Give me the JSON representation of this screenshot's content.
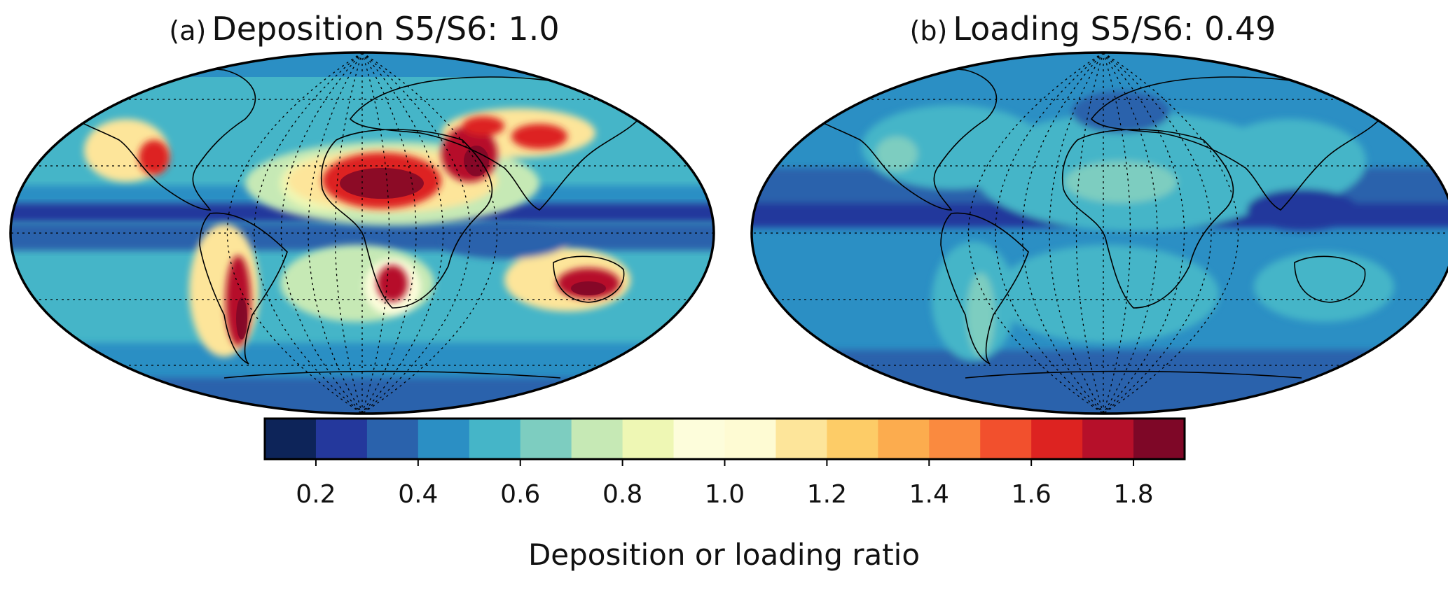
{
  "panels": [
    {
      "id": "a",
      "tag": "(a)",
      "title": "Deposition S5/S6: 1.0",
      "ratio": 1.0
    },
    {
      "id": "b",
      "tag": "(b)",
      "title": "Loading S5/S6: 0.49",
      "ratio": 0.49
    }
  ],
  "colorbar": {
    "label": "Deposition or loading ratio",
    "min": 0.1,
    "max": 1.9,
    "step": 0.1,
    "tick_values": [
      0.2,
      0.4,
      0.6,
      0.8,
      1.0,
      1.2,
      1.4,
      1.6,
      1.8
    ],
    "tick_labels": [
      "0.2",
      "0.4",
      "0.6",
      "0.8",
      "1.0",
      "1.2",
      "1.4",
      "1.6",
      "1.8"
    ],
    "colors": [
      "#0d2459",
      "#24389c",
      "#2a62ac",
      "#2b8fc4",
      "#45b5c8",
      "#7dcdc0",
      "#c6e9b5",
      "#eef7b4",
      "#fdfddb",
      "#fefbd3",
      "#fde59a",
      "#fdcc67",
      "#fcac4e",
      "#fa8a3f",
      "#f2502d",
      "#dd2321",
      "#b6102a",
      "#7e0727"
    ]
  },
  "map": {
    "projection": "Robinson",
    "ocean_base_color": "#3aa9cd",
    "outline_color": "#000000",
    "gridline_style": "dotted"
  }
}
